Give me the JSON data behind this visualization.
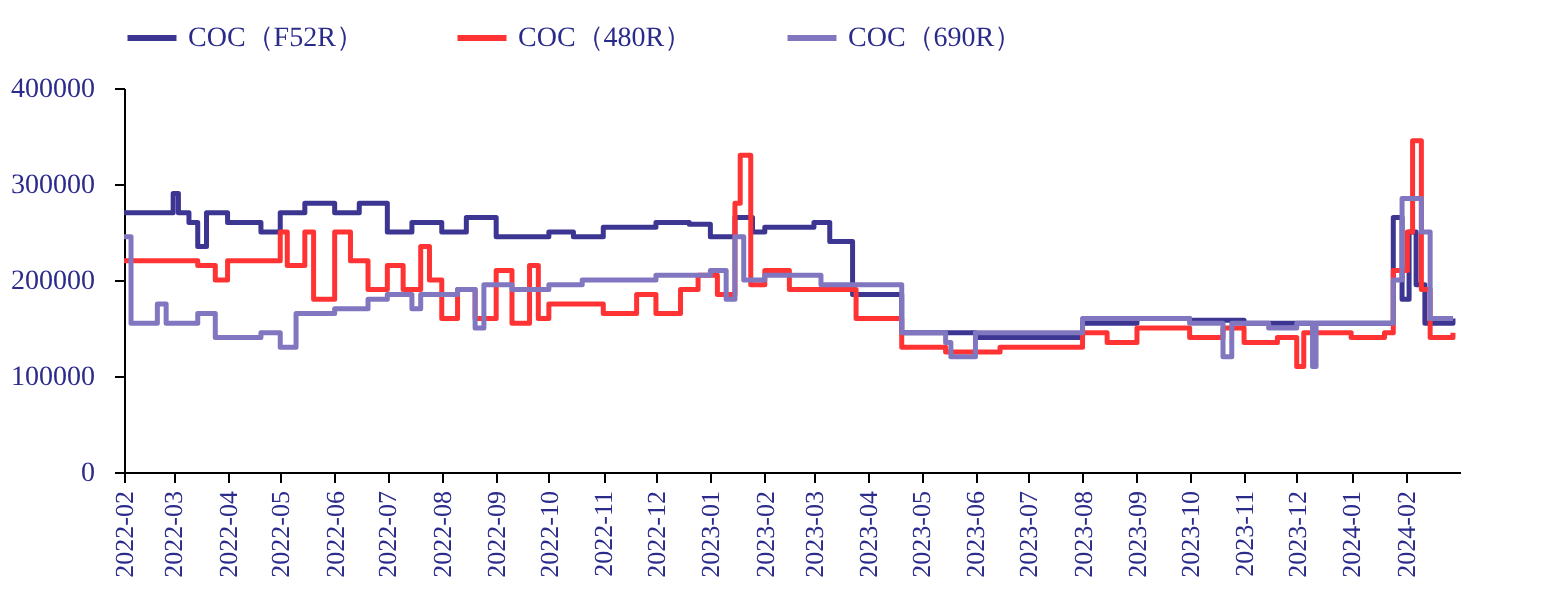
{
  "chart_data": {
    "type": "step",
    "legend": "top",
    "grid": false,
    "marker": "none",
    "line_style": "solid",
    "xlim": [
      "2022-02-01",
      "2024-03-03"
    ],
    "xticks": [
      "2022-02",
      "2022-03",
      "2022-04",
      "2022-05",
      "2022-06",
      "2022-07",
      "2022-08",
      "2022-09",
      "2022-10",
      "2022-11",
      "2022-12",
      "2023-01",
      "2023-02",
      "2023-03",
      "2023-04",
      "2023-05",
      "2023-06",
      "2023-07",
      "2023-08",
      "2023-09",
      "2023-10",
      "2023-11",
      "2023-12",
      "2024-01",
      "2024-02"
    ],
    "ylim": [
      0,
      400000
    ],
    "yticks": [
      0,
      100000,
      200000,
      300000,
      400000
    ],
    "series": [
      {
        "name": "COC（F52R）",
        "color": "#3c3591",
        "x": [
          "2022-02-01",
          "2022-03-01",
          "2022-03-04",
          "2022-03-10",
          "2022-03-15",
          "2022-03-20",
          "2022-04-01",
          "2022-04-20",
          "2022-05-01",
          "2022-05-15",
          "2022-06-01",
          "2022-06-15",
          "2022-07-01",
          "2022-07-15",
          "2022-08-01",
          "2022-08-15",
          "2022-09-01",
          "2022-10-01",
          "2022-10-15",
          "2022-11-01",
          "2022-12-01",
          "2022-12-20",
          "2023-01-01",
          "2023-01-15",
          "2023-01-25",
          "2023-02-01",
          "2023-03-01",
          "2023-03-10",
          "2023-03-23",
          "2023-04-20",
          "2023-06-01",
          "2023-08-01",
          "2023-09-01",
          "2023-10-01",
          "2023-11-01",
          "2024-01-01",
          "2024-01-25",
          "2024-01-30",
          "2024-02-03",
          "2024-02-07",
          "2024-02-12",
          "2024-02-28"
        ],
        "values": [
          270000,
          290000,
          270000,
          260000,
          235000,
          270000,
          260000,
          250000,
          270000,
          280000,
          270000,
          280000,
          250000,
          260000,
          250000,
          265000,
          245000,
          250000,
          245000,
          255000,
          260000,
          258000,
          245000,
          265000,
          250000,
          255000,
          260000,
          240000,
          185000,
          145000,
          140000,
          155000,
          160000,
          158000,
          155000,
          155000,
          265000,
          180000,
          250000,
          195000,
          155000,
          160000
        ]
      },
      {
        "name": "COC（480R）",
        "color": "#ff3333",
        "x": [
          "2022-02-01",
          "2022-03-15",
          "2022-03-25",
          "2022-04-01",
          "2022-05-01",
          "2022-05-05",
          "2022-05-15",
          "2022-05-20",
          "2022-06-01",
          "2022-06-10",
          "2022-06-20",
          "2022-07-01",
          "2022-07-10",
          "2022-07-20",
          "2022-07-25",
          "2022-08-01",
          "2022-08-10",
          "2022-08-20",
          "2022-09-01",
          "2022-09-10",
          "2022-09-20",
          "2022-09-25",
          "2022-10-01",
          "2022-11-01",
          "2022-11-20",
          "2022-12-01",
          "2022-12-15",
          "2022-12-25",
          "2023-01-05",
          "2023-01-15",
          "2023-01-18",
          "2023-01-24",
          "2023-02-01",
          "2023-02-15",
          "2023-03-25",
          "2023-04-20",
          "2023-05-15",
          "2023-06-15",
          "2023-08-01",
          "2023-08-15",
          "2023-09-01",
          "2023-10-01",
          "2023-10-20",
          "2023-11-01",
          "2023-11-20",
          "2023-12-01",
          "2023-12-05",
          "2024-01-01",
          "2024-01-20",
          "2024-01-25",
          "2024-02-02",
          "2024-02-05",
          "2024-02-10",
          "2024-02-15",
          "2024-02-28"
        ],
        "values": [
          220000,
          215000,
          200000,
          220000,
          250000,
          215000,
          250000,
          180000,
          250000,
          220000,
          190000,
          215000,
          190000,
          235000,
          200000,
          160000,
          190000,
          160000,
          210000,
          155000,
          215000,
          160000,
          175000,
          165000,
          185000,
          165000,
          190000,
          205000,
          185000,
          280000,
          330000,
          195000,
          210000,
          190000,
          160000,
          130000,
          125000,
          130000,
          145000,
          135000,
          150000,
          140000,
          150000,
          135000,
          140000,
          110000,
          145000,
          140000,
          145000,
          210000,
          250000,
          345000,
          190000,
          140000,
          145000
        ]
      },
      {
        "name": "COC（690R）",
        "color": "#8077c0",
        "x": [
          "2022-02-01",
          "2022-02-05",
          "2022-02-20",
          "2022-02-25",
          "2022-03-15",
          "2022-03-25",
          "2022-04-20",
          "2022-05-01",
          "2022-05-10",
          "2022-06-01",
          "2022-06-20",
          "2022-07-01",
          "2022-07-15",
          "2022-07-20",
          "2022-08-10",
          "2022-08-20",
          "2022-08-25",
          "2022-09-10",
          "2022-10-01",
          "2022-10-20",
          "2022-12-01",
          "2023-01-01",
          "2023-01-10",
          "2023-01-15",
          "2023-01-20",
          "2023-02-01",
          "2023-03-05",
          "2023-04-20",
          "2023-05-15",
          "2023-05-18",
          "2023-06-01",
          "2023-08-01",
          "2023-10-01",
          "2023-10-20",
          "2023-10-25",
          "2023-11-15",
          "2023-12-01",
          "2023-12-10",
          "2023-12-12",
          "2024-01-20",
          "2024-01-25",
          "2024-01-30",
          "2024-02-10",
          "2024-02-15",
          "2024-02-28"
        ],
        "values": [
          245000,
          155000,
          175000,
          155000,
          165000,
          140000,
          145000,
          130000,
          165000,
          170000,
          180000,
          185000,
          170000,
          185000,
          190000,
          150000,
          195000,
          190000,
          195000,
          200000,
          205000,
          210000,
          180000,
          245000,
          200000,
          205000,
          195000,
          145000,
          135000,
          120000,
          145000,
          160000,
          155000,
          120000,
          155000,
          150000,
          155000,
          110000,
          155000,
          155000,
          200000,
          285000,
          250000,
          160000,
          160000
        ]
      }
    ]
  }
}
